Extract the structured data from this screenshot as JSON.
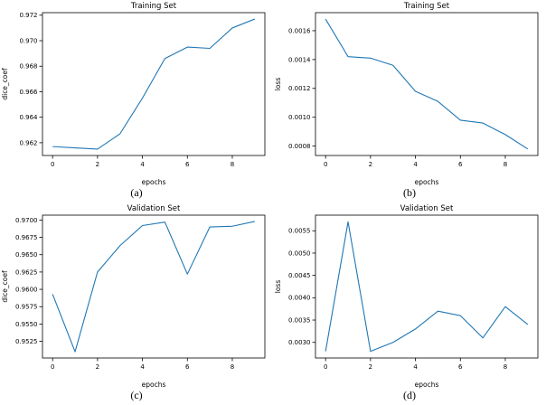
{
  "style": {
    "line_color": "#1f77b4",
    "axis_color": "#000000",
    "background": "#ffffff"
  },
  "chart_data": [
    {
      "id": "a",
      "type": "line",
      "title": "Training Set",
      "xlabel": "epochs",
      "ylabel": "dice_coef",
      "caption": "(a)",
      "legend": null,
      "grid": false,
      "x": [
        0,
        1,
        2,
        3,
        4,
        5,
        6,
        7,
        8,
        9
      ],
      "y": [
        0.9617,
        0.9616,
        0.9615,
        0.9627,
        0.9655,
        0.9686,
        0.9695,
        0.9694,
        0.971,
        0.9717
      ],
      "xlim": [
        -0.45,
        9.45
      ],
      "ylim": [
        0.961,
        0.9722
      ],
      "xticks": [
        0,
        2,
        4,
        6,
        8
      ],
      "xtick_labels": [
        "0",
        "2",
        "4",
        "6",
        "8"
      ],
      "yticks": [
        0.962,
        0.964,
        0.966,
        0.968,
        0.97,
        0.972
      ],
      "ytick_labels": [
        "0.962",
        "0.964",
        "0.966",
        "0.968",
        "0.970",
        "0.972"
      ]
    },
    {
      "id": "b",
      "type": "line",
      "title": "Training Set",
      "xlabel": "epochs",
      "ylabel": "loss",
      "caption": "(b)",
      "legend": null,
      "grid": false,
      "x": [
        0,
        1,
        2,
        3,
        4,
        5,
        6,
        7,
        8,
        9
      ],
      "y": [
        0.00168,
        0.00142,
        0.00141,
        0.00136,
        0.00118,
        0.00111,
        0.00098,
        0.00096,
        0.00088,
        0.00078
      ],
      "xlim": [
        -0.45,
        9.45
      ],
      "ylim": [
        0.000735,
        0.001725
      ],
      "xticks": [
        0,
        2,
        4,
        6,
        8
      ],
      "xtick_labels": [
        "0",
        "2",
        "4",
        "6",
        "8"
      ],
      "yticks": [
        0.0008,
        0.001,
        0.0012,
        0.0014,
        0.0016
      ],
      "ytick_labels": [
        "0.0008",
        "0.0010",
        "0.0012",
        "0.0014",
        "0.0016"
      ]
    },
    {
      "id": "c",
      "type": "line",
      "title": "Validation Set",
      "xlabel": "epochs",
      "ylabel": "dice_coef",
      "caption": "(c)",
      "legend": null,
      "grid": false,
      "x": [
        0,
        1,
        2,
        3,
        4,
        5,
        6,
        7,
        8,
        9
      ],
      "y": [
        0.9593,
        0.951,
        0.9625,
        0.9663,
        0.9692,
        0.9697,
        0.9622,
        0.969,
        0.9691,
        0.9698
      ],
      "xlim": [
        -0.45,
        9.45
      ],
      "ylim": [
        0.9501,
        0.9707
      ],
      "xticks": [
        0,
        2,
        4,
        6,
        8
      ],
      "xtick_labels": [
        "0",
        "2",
        "4",
        "6",
        "8"
      ],
      "yticks": [
        0.9525,
        0.955,
        0.9575,
        0.96,
        0.9625,
        0.965,
        0.9675,
        0.97
      ],
      "ytick_labels": [
        "0.9525",
        "0.9550",
        "0.9575",
        "0.9600",
        "0.9625",
        "0.9650",
        "0.9675",
        "0.9700"
      ]
    },
    {
      "id": "d",
      "type": "line",
      "title": "Validation Set",
      "xlabel": "epochs",
      "ylabel": "loss",
      "caption": "(d)",
      "legend": null,
      "grid": false,
      "x": [
        0,
        1,
        2,
        3,
        4,
        5,
        6,
        7,
        8,
        9
      ],
      "y": [
        0.0028,
        0.0057,
        0.0028,
        0.003,
        0.0033,
        0.0037,
        0.0036,
        0.0031,
        0.0038,
        0.0034
      ],
      "xlim": [
        -0.45,
        9.45
      ],
      "ylim": [
        0.00265,
        0.00585
      ],
      "xticks": [
        0,
        2,
        4,
        6,
        8
      ],
      "xtick_labels": [
        "0",
        "2",
        "4",
        "6",
        "8"
      ],
      "yticks": [
        0.003,
        0.0035,
        0.004,
        0.0045,
        0.005,
        0.0055
      ],
      "ytick_labels": [
        "0.0030",
        "0.0035",
        "0.0040",
        "0.0045",
        "0.0050",
        "0.0055"
      ]
    }
  ]
}
